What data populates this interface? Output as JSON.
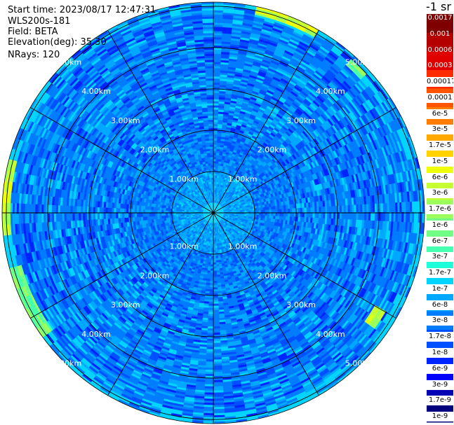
{
  "header": {
    "start_time": "Start time: 2023/08/17 12:47:31",
    "instrument": "WLS200s-181",
    "field": "Field: BETA",
    "elevation": "Elevation(deg): 35.30",
    "nrays": "NRays: 120"
  },
  "colorbar": {
    "unit": "-1 sr",
    "colors": [
      "#00007f",
      "#0000b4",
      "#0000ff",
      "#0024ff",
      "#0050ff",
      "#007cff",
      "#00a8ff",
      "#00d4ff",
      "#1dffda",
      "#47ffb0",
      "#71ff86",
      "#9bff5c",
      "#c5ff32",
      "#efff08",
      "#ffd200",
      "#ffa800",
      "#ff7e00",
      "#ff5400",
      "#ff2a00",
      "#e10000",
      "#b40000",
      "#7f0000"
    ],
    "labels": [
      "0.0017",
      "0.001",
      "0.0006",
      "0.0003",
      "0.00017",
      "0.0001",
      "6e-5",
      "3e-5",
      "1.7e-5",
      "1e-5",
      "6e-6",
      "3e-6",
      "1.7e-6",
      "1e-6",
      "6e-7",
      "3e-7",
      "1.7e-7",
      "1e-7",
      "6e-8",
      "3e-8",
      "1.7e-8",
      "1e-8",
      "6e-9",
      "3e-9",
      "1.7e-9",
      "1e-9"
    ]
  },
  "chart_data": {
    "type": "heatmap",
    "projection": "polar-ppi",
    "field": "BETA",
    "n_rays": 120,
    "azimuth_step_deg": 3,
    "spoke_interval_deg": 30,
    "range_rings_km": [
      1,
      2,
      3,
      4,
      5
    ],
    "max_range_km": 5.1,
    "ring_labels": [
      "1.00km",
      "2.00km",
      "3.00km",
      "4.00km",
      "5.00km"
    ],
    "value_range": [
      1e-09,
      0.0017
    ],
    "scale": "log",
    "dominant_level_range": [
      6e-09,
      3e-08
    ],
    "enhanced_sectors": [
      {
        "azimuth_from_deg": 262,
        "azimuth_to_deg": 285,
        "range_km_from": 4.9,
        "range_km_to": 5.1,
        "level": "3e-6"
      },
      {
        "azimuth_from_deg": 232,
        "azimuth_to_deg": 255,
        "range_km_from": 4.8,
        "range_km_to": 5.1,
        "level": "1e-6"
      },
      {
        "azimuth_from_deg": 10,
        "azimuth_to_deg": 30,
        "range_km_from": 4.9,
        "range_km_to": 5.1,
        "level": "1.7e-6"
      },
      {
        "azimuth_from_deg": 40,
        "azimuth_to_deg": 48,
        "range_km_from": 4.8,
        "range_km_to": 5.0,
        "level": "1e-6"
      },
      {
        "azimuth_from_deg": 118,
        "azimuth_to_deg": 124,
        "range_km_from": 4.5,
        "range_km_to": 4.8,
        "level": "1.7e-6"
      }
    ]
  }
}
